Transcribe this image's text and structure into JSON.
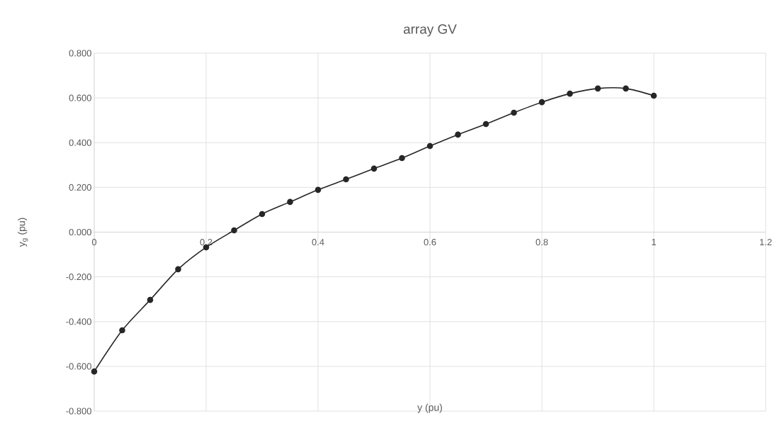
{
  "chart_data": {
    "type": "line",
    "title": "array GV",
    "xlabel": "y (pu)",
    "ylabel": "y$_{g}$ (pu)",
    "x": [
      0,
      0.05,
      0.1,
      0.15,
      0.2,
      0.25,
      0.3,
      0.35,
      0.4,
      0.45,
      0.5,
      0.55,
      0.6,
      0.65,
      0.7,
      0.75,
      0.8,
      0.85,
      0.9,
      0.95,
      1.0
    ],
    "series": [
      {
        "color": "#262626",
        "values": [
          -0.623,
          -0.439,
          -0.303,
          -0.166,
          -0.068,
          0.008,
          0.081,
          0.135,
          0.189,
          0.236,
          0.284,
          0.331,
          0.385,
          0.436,
          0.483,
          0.534,
          0.581,
          0.619,
          0.642,
          0.642,
          0.61
        ]
      }
    ],
    "xlim": [
      0,
      1.2
    ],
    "xticks": [
      0,
      0.2,
      0.4,
      0.6,
      0.8,
      1,
      1.2
    ],
    "ylim": [
      -0.8,
      0.8
    ],
    "yticks": [
      {
        "value": -0.8,
        "label": "-0.800"
      },
      {
        "value": -0.6,
        "label": "-0.600"
      },
      {
        "value": -0.4,
        "label": "-0.400"
      },
      {
        "value": -0.2,
        "label": "-0.200"
      },
      {
        "value": 0,
        "label": "0.000"
      },
      {
        "value": 0.2,
        "label": "0.200"
      },
      {
        "value": 0.4,
        "label": "0.400"
      },
      {
        "value": 0.6,
        "label": "0.600"
      },
      {
        "value": 0.8,
        "label": "0.800"
      }
    ],
    "grid": true,
    "marker": "circle",
    "line_style": "solid"
  }
}
